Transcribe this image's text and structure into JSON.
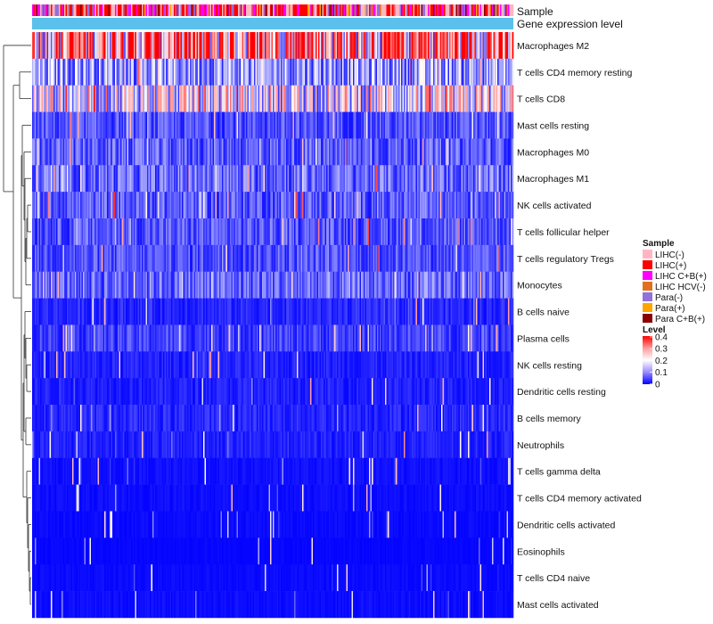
{
  "chart_data": {
    "type": "heatmap",
    "annotation_tracks": [
      "Sample",
      "Gene expression level"
    ],
    "rows": [
      {
        "label": "Macrophages M2",
        "mean": 0.3
      },
      {
        "label": "T cells CD4 memory resting",
        "mean": 0.12
      },
      {
        "label": "T cells CD8",
        "mean": 0.18
      },
      {
        "label": "Mast cells resting",
        "mean": 0.06
      },
      {
        "label": "Macrophages M0",
        "mean": 0.07
      },
      {
        "label": "Macrophages M1",
        "mean": 0.08
      },
      {
        "label": "NK cells activated",
        "mean": 0.07
      },
      {
        "label": "T cells follicular helper",
        "mean": 0.065
      },
      {
        "label": "T cells regulatory  Tregs",
        "mean": 0.06
      },
      {
        "label": "Monocytes",
        "mean": 0.08
      },
      {
        "label": "B cells naive",
        "mean": 0.03
      },
      {
        "label": "Plasma cells",
        "mean": 0.05
      },
      {
        "label": "NK cells resting",
        "mean": 0.025
      },
      {
        "label": "Dendritic cells resting",
        "mean": 0.025
      },
      {
        "label": "B cells memory",
        "mean": 0.03
      },
      {
        "label": "Neutrophils",
        "mean": 0.025
      },
      {
        "label": "T cells gamma delta",
        "mean": 0.012
      },
      {
        "label": "T cells CD4 memory activated",
        "mean": 0.01
      },
      {
        "label": "Dendritic cells activated",
        "mean": 0.008
      },
      {
        "label": "Eosinophils",
        "mean": 0.005
      },
      {
        "label": "T cells CD4 naive",
        "mean": 0.008
      },
      {
        "label": "Mast cells activated",
        "mean": 0.01
      }
    ],
    "sample_legend": {
      "title": "Sample",
      "items": [
        {
          "label": "LIHC(-)",
          "color": "#ffb6c1"
        },
        {
          "label": "LIHC(+)",
          "color": "#ff0000"
        },
        {
          "label": "LIHC C+B(+)",
          "color": "#ff00ff"
        },
        {
          "label": "LIHC HCV(-)",
          "color": "#e07020"
        },
        {
          "label": "Para(-)",
          "color": "#9370db"
        },
        {
          "label": "Para(+)",
          "color": "#ffa500"
        },
        {
          "label": "Para C+B(+)",
          "color": "#8b0000"
        }
      ]
    },
    "level_legend": {
      "title": "Level",
      "ticks": [
        "0.4",
        "0.3",
        "0.2",
        "0.1",
        "0"
      ],
      "range": [
        0,
        0.4
      ]
    },
    "colors": {
      "low": "#0000ff",
      "mid": "#ffffff",
      "high": "#ff0000",
      "expression_bar": "#5bc0eb"
    },
    "n_samples": 360
  }
}
